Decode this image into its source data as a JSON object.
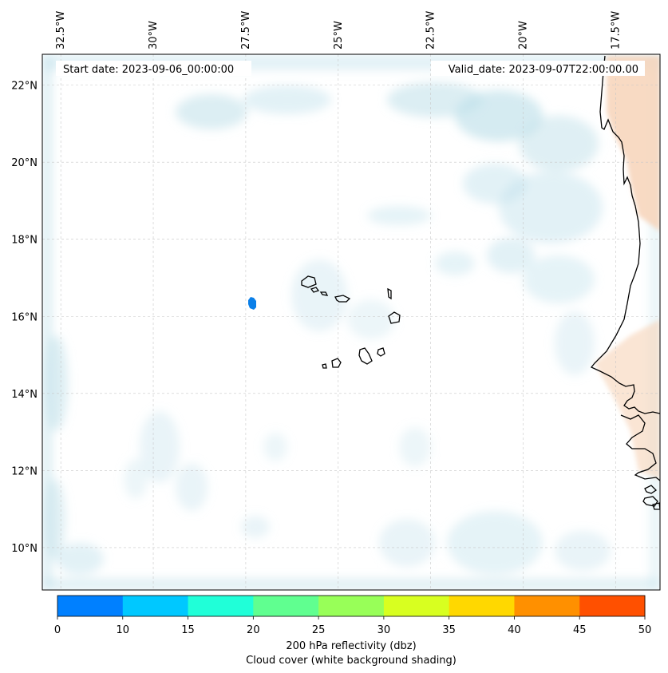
{
  "header": {
    "start_label": "Start date: 2023-09-06_00:00:00",
    "valid_label": "Valid_date: 2023-09-07T22:00:00.00"
  },
  "map": {
    "extent": {
      "lon_min": -33.0,
      "lon_max": -16.3,
      "lat_min": 8.9,
      "lat_max": 22.8
    },
    "lon_ticks": [
      {
        "value": -32.5,
        "label": "32.5°W"
      },
      {
        "value": -30.0,
        "label": "30°W"
      },
      {
        "value": -27.5,
        "label": "27.5°W"
      },
      {
        "value": -25.0,
        "label": "25°W"
      },
      {
        "value": -22.5,
        "label": "22.5°W"
      },
      {
        "value": -20.0,
        "label": "20°W"
      },
      {
        "value": -17.5,
        "label": "17.5°W"
      }
    ],
    "lat_ticks": [
      {
        "value": 22,
        "label": "22°N"
      },
      {
        "value": 20,
        "label": "20°N"
      },
      {
        "value": 18,
        "label": "18°N"
      },
      {
        "value": 16,
        "label": "16°N"
      },
      {
        "value": 14,
        "label": "14°N"
      },
      {
        "value": 12,
        "label": "12°N"
      },
      {
        "value": 10,
        "label": "10°N"
      }
    ],
    "gridlines": true,
    "colors": {
      "cloud": "#bfe0ea",
      "land_shading": "#f7d3b8",
      "coastline": "#000000",
      "gridline": "#bbbbbb",
      "reflectivity_echo": "#0a7fe8"
    },
    "reflectivity_echo_location": {
      "lon": -28.4,
      "lat": 16.3,
      "value_dbz": 5
    }
  },
  "colorbar": {
    "ticks": [
      "0",
      "10",
      "15",
      "20",
      "25",
      "30",
      "35",
      "40",
      "45",
      "50"
    ],
    "colors": [
      "#0080ff",
      "#00c8ff",
      "#20ffd8",
      "#60ff90",
      "#98ff58",
      "#d8ff20",
      "#ffd800",
      "#ff9000",
      "#ff5000"
    ],
    "label_line1": "200 hPa reflectivity (dbz)",
    "label_line2": "Cloud cover (white background shading)"
  }
}
